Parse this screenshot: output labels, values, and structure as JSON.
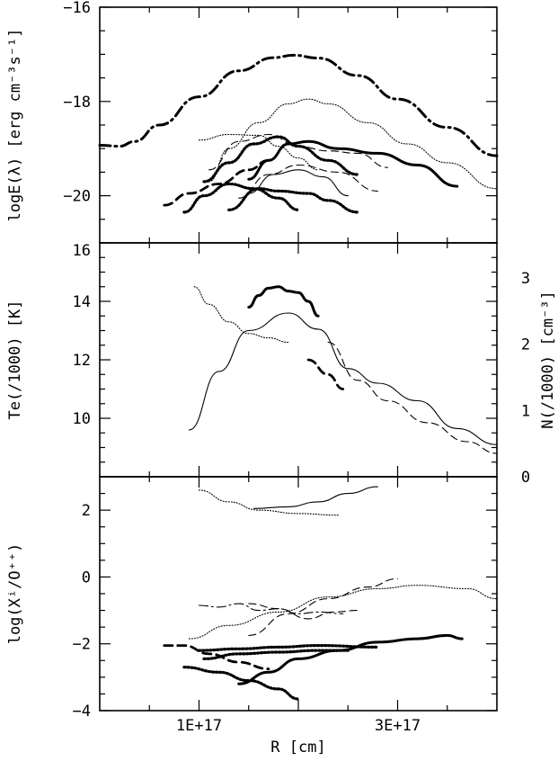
{
  "chart_data": [
    {
      "type": "line",
      "panel": "top",
      "ylabel": "logE(λ) [erg cm⁻³s⁻¹]",
      "xlim": [
        0,
        4e+17
      ],
      "ylim": [
        -21,
        -16
      ],
      "yticks": [
        -20,
        -18,
        -16
      ],
      "series": [
        {
          "style": "dashdot-heavy",
          "points": [
            [
              0.0,
              -18.93
            ],
            [
              2e+16,
              -18.95
            ],
            [
              3.5e+16,
              -18.85
            ],
            [
              6e+16,
              -18.5
            ],
            [
              1e+17,
              -17.9
            ],
            [
              1.4e+17,
              -17.35
            ],
            [
              1.75e+17,
              -17.07
            ],
            [
              1.95e+17,
              -17.02
            ],
            [
              2.2e+17,
              -17.08
            ],
            [
              2.6e+17,
              -17.45
            ],
            [
              3e+17,
              -17.95
            ],
            [
              3.5e+17,
              -18.55
            ],
            [
              4e+17,
              -19.15
            ]
          ]
        },
        {
          "style": "dotted-thin",
          "points": [
            [
              1.1e+17,
              -19.7
            ],
            [
              1.3e+17,
              -19.0
            ],
            [
              1.6e+17,
              -18.45
            ],
            [
              1.9e+17,
              -18.05
            ],
            [
              2.1e+17,
              -17.95
            ],
            [
              2.3e+17,
              -18.05
            ],
            [
              2.7e+17,
              -18.45
            ],
            [
              3.1e+17,
              -18.9
            ],
            [
              3.5e+17,
              -19.3
            ],
            [
              4e+17,
              -19.85
            ]
          ]
        },
        {
          "style": "solid-heavy",
          "points": [
            [
              1.5e+17,
              -19.65
            ],
            [
              1.7e+17,
              -19.25
            ],
            [
              1.9e+17,
              -18.9
            ],
            [
              2.1e+17,
              -18.85
            ],
            [
              2.4e+17,
              -19.0
            ],
            [
              2.8e+17,
              -19.1
            ],
            [
              3.2e+17,
              -19.35
            ],
            [
              3.6e+17,
              -19.8
            ]
          ]
        },
        {
          "style": "dotted-thin",
          "points": [
            [
              1e+17,
              -18.82
            ],
            [
              1.3e+17,
              -18.7
            ],
            [
              1.6e+17,
              -18.72
            ],
            [
              1.8e+17,
              -18.95
            ],
            [
              2e+17,
              -19.2
            ],
            [
              2.2e+17,
              -19.45
            ]
          ]
        },
        {
          "style": "dashed-thin",
          "points": [
            [
              1.1e+17,
              -19.45
            ],
            [
              1.4e+17,
              -18.85
            ],
            [
              1.7e+17,
              -18.7
            ],
            [
              2e+17,
              -18.95
            ],
            [
              2.3e+17,
              -19.05
            ],
            [
              2.6e+17,
              -19.1
            ],
            [
              2.9e+17,
              -19.4
            ]
          ]
        },
        {
          "style": "dotted-heavy",
          "points": [
            [
              1.05e+17,
              -19.7
            ],
            [
              1.3e+17,
              -19.3
            ],
            [
              1.55e+17,
              -18.9
            ],
            [
              1.8e+17,
              -18.75
            ],
            [
              2e+17,
              -18.95
            ],
            [
              2.3e+17,
              -19.25
            ],
            [
              2.6e+17,
              -19.55
            ]
          ]
        },
        {
          "style": "dashed-heavy",
          "points": [
            [
              6.5e+16,
              -20.2
            ],
            [
              9e+16,
              -19.95
            ],
            [
              1.2e+17,
              -19.75
            ],
            [
              1.5e+17,
              -19.45
            ],
            [
              1.7e+17,
              -19.25
            ]
          ]
        },
        {
          "style": "dashed-thin",
          "points": [
            [
              1.4e+17,
              -20.05
            ],
            [
              1.7e+17,
              -19.55
            ],
            [
              2e+17,
              -19.35
            ],
            [
              2.4e+17,
              -19.5
            ],
            [
              2.8e+17,
              -19.9
            ]
          ]
        },
        {
          "style": "solid-thin",
          "points": [
            [
              1.5e+17,
              -19.95
            ],
            [
              1.75e+17,
              -19.55
            ],
            [
              2e+17,
              -19.45
            ],
            [
              2.25e+17,
              -19.6
            ],
            [
              2.5e+17,
              -20.0
            ]
          ]
        },
        {
          "style": "dotted-heavy",
          "points": [
            [
              8.5e+16,
              -20.35
            ],
            [
              1.05e+17,
              -20.0
            ],
            [
              1.3e+17,
              -19.75
            ],
            [
              1.55e+17,
              -19.85
            ],
            [
              1.8e+17,
              -20.05
            ],
            [
              2e+17,
              -20.3
            ]
          ]
        },
        {
          "style": "dotted-heavy",
          "points": [
            [
              1.3e+17,
              -20.3
            ],
            [
              1.6e+17,
              -19.85
            ],
            [
              1.8e+17,
              -19.9
            ],
            [
              2.1e+17,
              -19.95
            ],
            [
              2.3e+17,
              -20.1
            ],
            [
              2.6e+17,
              -20.35
            ]
          ]
        }
      ]
    },
    {
      "type": "line",
      "panel": "middle",
      "ylabel": "Te(/1000) [K]",
      "ylabel_right": "N(/1000) [cm⁻³]",
      "xlim": [
        0,
        4e+17
      ],
      "ylim": [
        8,
        16
      ],
      "yticks": [
        8,
        10,
        12,
        14,
        16
      ],
      "ylim_right": [
        0,
        3.53
      ],
      "yticks_right": [
        0,
        1,
        2,
        3
      ],
      "series": [
        {
          "style": "solid-heavy",
          "axis": "left",
          "points": [
            [
              1.5e+17,
              13.8
            ],
            [
              1.6e+17,
              14.2
            ],
            [
              1.7e+17,
              14.45
            ],
            [
              1.8e+17,
              14.5
            ],
            [
              1.9e+17,
              14.35
            ],
            [
              2e+17,
              14.3
            ],
            [
              2.1e+17,
              14.0
            ],
            [
              2.2e+17,
              13.5
            ]
          ]
        },
        {
          "style": "dotted-thin",
          "axis": "left",
          "points": [
            [
              9.5e+16,
              14.5
            ],
            [
              1.1e+17,
              13.9
            ],
            [
              1.3e+17,
              13.3
            ],
            [
              1.5e+17,
              12.9
            ],
            [
              1.7e+17,
              12.75
            ],
            [
              1.9e+17,
              12.6
            ]
          ]
        },
        {
          "style": "solid-thin",
          "axis": "left",
          "points": [
            [
              9e+16,
              9.6
            ],
            [
              1.2e+17,
              11.6
            ],
            [
              1.5e+17,
              13.0
            ],
            [
              1.9e+17,
              13.6
            ],
            [
              2.2e+17,
              13.05
            ],
            [
              2.5e+17,
              11.7
            ],
            [
              2.8e+17,
              11.2
            ],
            [
              3.2e+17,
              10.6
            ],
            [
              3.6e+17,
              9.65
            ],
            [
              4e+17,
              9.1
            ]
          ]
        },
        {
          "style": "dashed-heavy",
          "axis": "left",
          "points": [
            [
              2.1e+17,
              12.0
            ],
            [
              2.3e+17,
              11.5
            ],
            [
              2.45e+17,
              11.0
            ]
          ]
        },
        {
          "style": "dashed-thin",
          "axis": "left",
          "points": [
            [
              2.3e+17,
              12.6
            ],
            [
              2.6e+17,
              11.3
            ],
            [
              2.9e+17,
              10.6
            ],
            [
              3.3e+17,
              9.85
            ],
            [
              3.7e+17,
              9.2
            ],
            [
              4e+17,
              8.8
            ]
          ]
        }
      ]
    },
    {
      "type": "line",
      "panel": "bottom",
      "ylabel": "log(Xⁱ/O⁺⁺)",
      "xlabel": "R [cm]",
      "xlim": [
        0,
        4e+17
      ],
      "ylim": [
        -4,
        3
      ],
      "yticks": [
        -4,
        -2,
        0,
        2
      ],
      "xticks": [
        1e+17,
        3e+17
      ],
      "xtick_labels": [
        "1E+17",
        "3E+17"
      ],
      "series": [
        {
          "style": "solid-thin",
          "points": [
            [
              1.55e+17,
              2.05
            ],
            [
              1.9e+17,
              2.1
            ],
            [
              2.2e+17,
              2.25
            ],
            [
              2.5e+17,
              2.5
            ],
            [
              2.8e+17,
              2.7
            ]
          ]
        },
        {
          "style": "dotted-thin",
          "points": [
            [
              1e+17,
              2.6
            ],
            [
              1.3e+17,
              2.25
            ],
            [
              1.6e+17,
              2.0
            ],
            [
              2e+17,
              1.9
            ],
            [
              2.4e+17,
              1.85
            ]
          ]
        },
        {
          "style": "dashed-thin",
          "points": [
            [
              1.5e+17,
              -1.75
            ],
            [
              1.9e+17,
              -1.1
            ],
            [
              2.3e+17,
              -0.65
            ],
            [
              2.7e+17,
              -0.3
            ],
            [
              3e+17,
              -0.05
            ]
          ]
        },
        {
          "style": "dotted-thin",
          "points": [
            [
              9e+16,
              -1.85
            ],
            [
              1.3e+17,
              -1.45
            ],
            [
              1.8e+17,
              -1.05
            ],
            [
              2.3e+17,
              -0.6
            ],
            [
              2.8e+17,
              -0.35
            ],
            [
              3.2e+17,
              -0.25
            ],
            [
              3.7e+17,
              -0.35
            ],
            [
              4e+17,
              -0.65
            ]
          ]
        },
        {
          "style": "dashdot-thin",
          "points": [
            [
              1e+17,
              -0.85
            ],
            [
              1.2e+17,
              -0.9
            ],
            [
              1.4e+17,
              -0.8
            ],
            [
              1.6e+17,
              -1.0
            ],
            [
              1.8e+17,
              -0.95
            ],
            [
              2e+17,
              -1.1
            ],
            [
              2.2e+17,
              -1.05
            ],
            [
              2.45e+17,
              -1.1
            ]
          ]
        },
        {
          "style": "dashed-thin",
          "points": [
            [
              1.5e+17,
              -0.8
            ],
            [
              1.8e+17,
              -0.95
            ],
            [
              2.1e+17,
              -1.25
            ],
            [
              2.35e+17,
              -1.05
            ],
            [
              2.6e+17,
              -1.0
            ]
          ]
        },
        {
          "style": "solid-heavy",
          "points": [
            [
              1.4e+17,
              -3.2
            ],
            [
              1.7e+17,
              -2.85
            ],
            [
              2e+17,
              -2.45
            ],
            [
              2.4e+17,
              -2.2
            ],
            [
              2.8e+17,
              -1.95
            ],
            [
              3.2e+17,
              -1.85
            ],
            [
              3.5e+17,
              -1.75
            ],
            [
              3.65e+17,
              -1.85
            ]
          ]
        },
        {
          "style": "dotted-heavy",
          "points": [
            [
              1e+17,
              -2.2
            ],
            [
              1.4e+17,
              -2.15
            ],
            [
              1.8e+17,
              -2.1
            ],
            [
              2.2e+17,
              -2.05
            ],
            [
              2.8e+17,
              -2.1
            ]
          ]
        },
        {
          "style": "dotted-heavy",
          "points": [
            [
              1.05e+17,
              -2.45
            ],
            [
              1.4e+17,
              -2.3
            ],
            [
              1.8e+17,
              -2.25
            ],
            [
              2.2e+17,
              -2.2
            ],
            [
              2.5e+17,
              -2.2
            ]
          ]
        },
        {
          "style": "dashed-heavy",
          "points": [
            [
              6.5e+16,
              -2.05
            ],
            [
              8.5e+16,
              -2.05
            ],
            [
              1.1e+17,
              -2.3
            ],
            [
              1.4e+17,
              -2.55
            ],
            [
              1.7e+17,
              -2.75
            ]
          ]
        },
        {
          "style": "dotted-heavy",
          "points": [
            [
              8.5e+16,
              -2.7
            ],
            [
              1.2e+17,
              -2.85
            ],
            [
              1.5e+17,
              -3.1
            ],
            [
              1.8e+17,
              -3.35
            ],
            [
              2e+17,
              -3.65
            ]
          ]
        }
      ]
    }
  ]
}
